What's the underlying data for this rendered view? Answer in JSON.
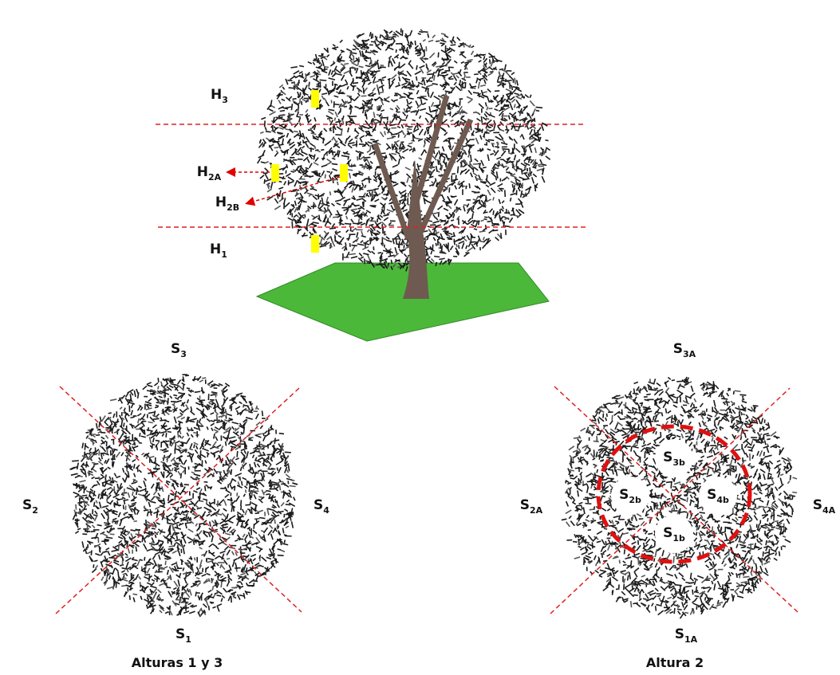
{
  "side_view": {
    "labels": [
      {
        "main": "H",
        "sub": "3"
      },
      {
        "main": "H",
        "sub": "2A"
      },
      {
        "main": "H",
        "sub": "2B"
      },
      {
        "main": "H",
        "sub": "1"
      }
    ]
  },
  "top_views": [
    {
      "caption": "Alturas 1 y 3",
      "sectors": [
        {
          "main": "S",
          "sub": "3"
        },
        {
          "main": "S",
          "sub": "2"
        },
        {
          "main": "S",
          "sub": "4"
        },
        {
          "main": "S",
          "sub": "1"
        }
      ]
    },
    {
      "caption": "Altura 2",
      "sectors": [
        {
          "main": "S",
          "sub": "3A"
        },
        {
          "main": "S",
          "sub": "2A"
        },
        {
          "main": "S",
          "sub": "4A"
        },
        {
          "main": "S",
          "sub": "1A"
        }
      ],
      "inner": [
        {
          "main": "S",
          "sub": "3b"
        },
        {
          "main": "S",
          "sub": "2b"
        },
        {
          "main": "S",
          "sub": "4b"
        },
        {
          "main": "S",
          "sub": "1b"
        }
      ]
    }
  ]
}
